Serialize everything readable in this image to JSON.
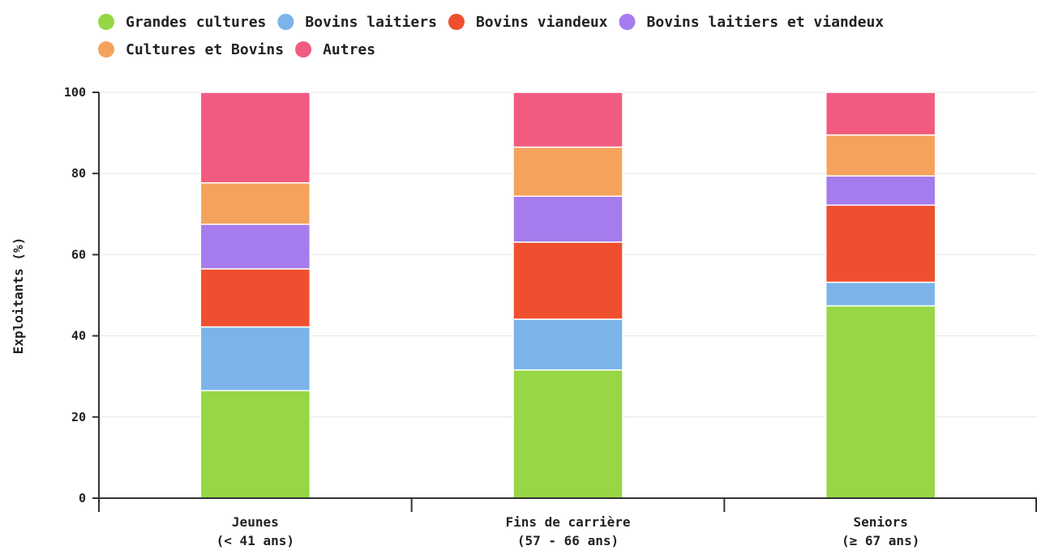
{
  "chart_data": {
    "type": "bar",
    "stacked": true,
    "ylabel": "Exploitants (%)",
    "ylim": [
      0,
      100
    ],
    "yticks": [
      0,
      20,
      40,
      60,
      80,
      100
    ],
    "grid": true,
    "legend_position": "top",
    "categories": [
      [
        "Jeunes",
        "(< 41 ans)"
      ],
      [
        "Fins de carrière",
        "(57 - 66 ans)"
      ],
      [
        "Seniors",
        "(≥ 67 ans)"
      ]
    ],
    "series": [
      {
        "name": "Grandes cultures",
        "color": "#97d645",
        "values": [
          26.5,
          31.6,
          47.4
        ]
      },
      {
        "name": "Bovins laitiers",
        "color": "#7cb4ea",
        "values": [
          15.7,
          12.5,
          5.8
        ]
      },
      {
        "name": "Bovins viandeux",
        "color": "#ef4f2e",
        "values": [
          14.3,
          19.0,
          19.0
        ]
      },
      {
        "name": "Bovins laitiers et viandeux",
        "color": "#a57cee",
        "values": [
          11.0,
          11.3,
          7.2
        ]
      },
      {
        "name": "Cultures et Bovins",
        "color": "#f5a35c",
        "values": [
          10.2,
          12.1,
          10.1
        ]
      },
      {
        "name": "Autres",
        "color": "#f15b80",
        "values": [
          22.3,
          13.5,
          10.5
        ]
      }
    ]
  }
}
